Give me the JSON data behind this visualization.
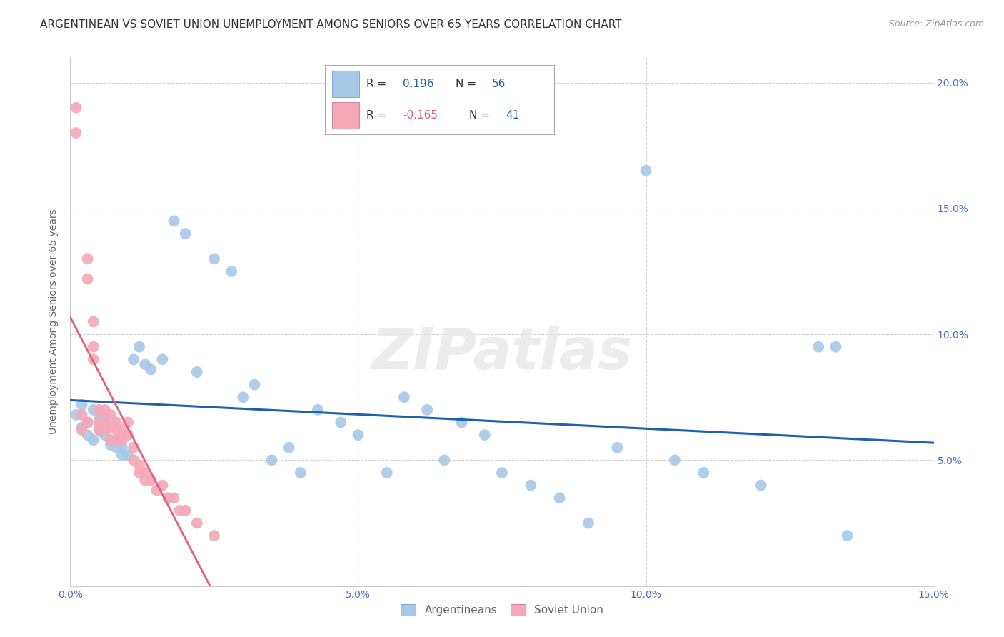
{
  "title": "ARGENTINEAN VS SOVIET UNION UNEMPLOYMENT AMONG SENIORS OVER 65 YEARS CORRELATION CHART",
  "source": "Source: ZipAtlas.com",
  "ylabel": "Unemployment Among Seniors over 65 years",
  "xlim": [
    0.0,
    0.15
  ],
  "ylim": [
    0.0,
    0.21
  ],
  "x_ticks": [
    0.0,
    0.05,
    0.1,
    0.15
  ],
  "x_tick_labels": [
    "0.0%",
    "5.0%",
    "10.0%",
    "15.0%"
  ],
  "y_ticks_right": [
    0.05,
    0.1,
    0.15,
    0.2
  ],
  "y_tick_labels_right": [
    "5.0%",
    "10.0%",
    "15.0%",
    "20.0%"
  ],
  "blue_r": 0.196,
  "blue_n": 56,
  "pink_r": -0.165,
  "pink_n": 41,
  "argentinean_x": [
    0.001,
    0.002,
    0.002,
    0.003,
    0.003,
    0.004,
    0.004,
    0.005,
    0.005,
    0.005,
    0.006,
    0.006,
    0.006,
    0.007,
    0.007,
    0.008,
    0.008,
    0.009,
    0.009,
    0.01,
    0.011,
    0.012,
    0.013,
    0.014,
    0.016,
    0.018,
    0.02,
    0.022,
    0.025,
    0.028,
    0.03,
    0.032,
    0.035,
    0.038,
    0.04,
    0.043,
    0.047,
    0.05,
    0.055,
    0.058,
    0.062,
    0.065,
    0.068,
    0.072,
    0.075,
    0.08,
    0.085,
    0.09,
    0.095,
    0.1,
    0.105,
    0.11,
    0.12,
    0.13,
    0.133,
    0.135
  ],
  "argentinean_y": [
    0.068,
    0.063,
    0.072,
    0.06,
    0.065,
    0.058,
    0.07,
    0.062,
    0.066,
    0.069,
    0.06,
    0.064,
    0.068,
    0.056,
    0.058,
    0.055,
    0.058,
    0.052,
    0.055,
    0.052,
    0.09,
    0.095,
    0.088,
    0.086,
    0.09,
    0.145,
    0.14,
    0.085,
    0.13,
    0.125,
    0.075,
    0.08,
    0.05,
    0.055,
    0.045,
    0.07,
    0.065,
    0.06,
    0.045,
    0.075,
    0.07,
    0.05,
    0.065,
    0.06,
    0.045,
    0.04,
    0.035,
    0.025,
    0.055,
    0.165,
    0.05,
    0.045,
    0.04,
    0.095,
    0.095,
    0.02
  ],
  "soviet_x": [
    0.001,
    0.001,
    0.002,
    0.002,
    0.003,
    0.003,
    0.003,
    0.004,
    0.004,
    0.004,
    0.005,
    0.005,
    0.005,
    0.006,
    0.006,
    0.006,
    0.007,
    0.007,
    0.007,
    0.008,
    0.008,
    0.008,
    0.009,
    0.009,
    0.01,
    0.01,
    0.011,
    0.011,
    0.012,
    0.012,
    0.013,
    0.013,
    0.014,
    0.015,
    0.016,
    0.017,
    0.018,
    0.019,
    0.02,
    0.022,
    0.025
  ],
  "soviet_y": [
    0.19,
    0.18,
    0.068,
    0.062,
    0.13,
    0.122,
    0.065,
    0.105,
    0.095,
    0.09,
    0.07,
    0.065,
    0.062,
    0.07,
    0.065,
    0.062,
    0.068,
    0.063,
    0.058,
    0.065,
    0.062,
    0.058,
    0.062,
    0.058,
    0.065,
    0.06,
    0.055,
    0.05,
    0.048,
    0.045,
    0.045,
    0.042,
    0.042,
    0.038,
    0.04,
    0.035,
    0.035,
    0.03,
    0.03,
    0.025,
    0.02
  ],
  "blue_scatter_color": "#a8c8e8",
  "pink_scatter_color": "#f4a8b8",
  "blue_line_color": "#2060b0",
  "pink_line_color": "#e06080",
  "grid_color": "#d0d0d0",
  "background_color": "#ffffff",
  "watermark": "ZIPatlas",
  "title_fontsize": 11,
  "axis_label_fontsize": 10,
  "tick_fontsize": 10,
  "tick_color": "#4472c4",
  "label_color": "#666666"
}
